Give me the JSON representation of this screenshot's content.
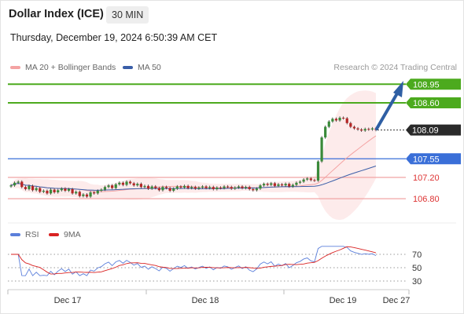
{
  "header": {
    "instrument": "Dollar Index (ICE)",
    "timeframe": "30 MIN",
    "datetime": "Thursday, December 19, 2024 6:50:39 AM CET"
  },
  "legend": {
    "ma20": "MA 20 + Bollinger Bands",
    "ma50": "MA 50",
    "credit": "Research © 2024 Trading Central",
    "rsi": "RSI",
    "ma9": "9MA"
  },
  "colors": {
    "ma20": "#f4a3a3",
    "ma50": "#3a5ea8",
    "green_level": "#4caa1e",
    "blue_level": "#3a6fd8",
    "red_level": "#f1a5a5",
    "arrow": "#2f5fa4",
    "rsi": "#5b7fdb",
    "rsi_ma": "#d92222"
  },
  "price_levels": [
    {
      "label": "108.95",
      "value": 108.95,
      "kind": "resistance"
    },
    {
      "label": "108.60",
      "value": 108.6,
      "kind": "resistance"
    },
    {
      "label": "108.09",
      "value": 108.09,
      "kind": "current"
    },
    {
      "label": "107.55",
      "value": 107.55,
      "kind": "pivot"
    },
    {
      "label": "107.20",
      "value": 107.2,
      "kind": "support"
    },
    {
      "label": "106.80",
      "value": 106.8,
      "kind": "support"
    }
  ],
  "rsi_levels": [
    "70",
    "50",
    "30"
  ],
  "x_axis": [
    "Dec 17",
    "Dec 18",
    "Dec 19",
    "Dec 27"
  ],
  "chart_data": {
    "type": "candlestick",
    "title": "Dollar Index (ICE)",
    "timeframe": "30 MIN",
    "y_ticks": [
      "108.95",
      "108.60",
      "108.09",
      "107.55",
      "107.20",
      "106.80"
    ],
    "ylim": [
      106.65,
      109.05
    ],
    "x_ticks": [
      "Dec 17",
      "Dec 18",
      "Dec 19",
      "Dec 27"
    ],
    "close": [
      107.05,
      107.1,
      107.12,
      107.02,
      106.98,
      107.04,
      106.96,
      107.0,
      106.93,
      106.95,
      106.9,
      106.97,
      106.92,
      106.96,
      106.99,
      106.95,
      106.98,
      106.9,
      106.93,
      106.85,
      106.88,
      106.84,
      106.92,
      106.9,
      106.95,
      106.97,
      107.02,
      107.05,
      107.0,
      107.07,
      107.1,
      107.06,
      107.12,
      107.09,
      107.05,
      107.08,
      107.02,
      107.04,
      106.99,
      107.03,
      107.0,
      106.96,
      107.02,
      107.0,
      106.95,
      106.99,
      107.03,
      107.01,
      107.04,
      107.0,
      107.02,
      106.99,
      107.01,
      107.03,
      107.0,
      107.02,
      106.98,
      107.01,
      107.0,
      107.03,
      107.02,
      106.99,
      107.01,
      107.03,
      107.0,
      107.02,
      106.98,
      106.96,
      106.99,
      107.05,
      107.08,
      107.06,
      107.09,
      107.04,
      107.07,
      107.05,
      107.08,
      107.03,
      107.06,
      107.1,
      107.12,
      107.16,
      107.18,
      107.15,
      107.14,
      107.5,
      107.95,
      108.15,
      108.25,
      108.3,
      108.27,
      108.32,
      108.31,
      108.22,
      108.15,
      108.12,
      108.1,
      108.08,
      108.11,
      108.1,
      108.12,
      108.09
    ],
    "rsi_ma_levels": [
      70,
      50,
      30
    ]
  }
}
